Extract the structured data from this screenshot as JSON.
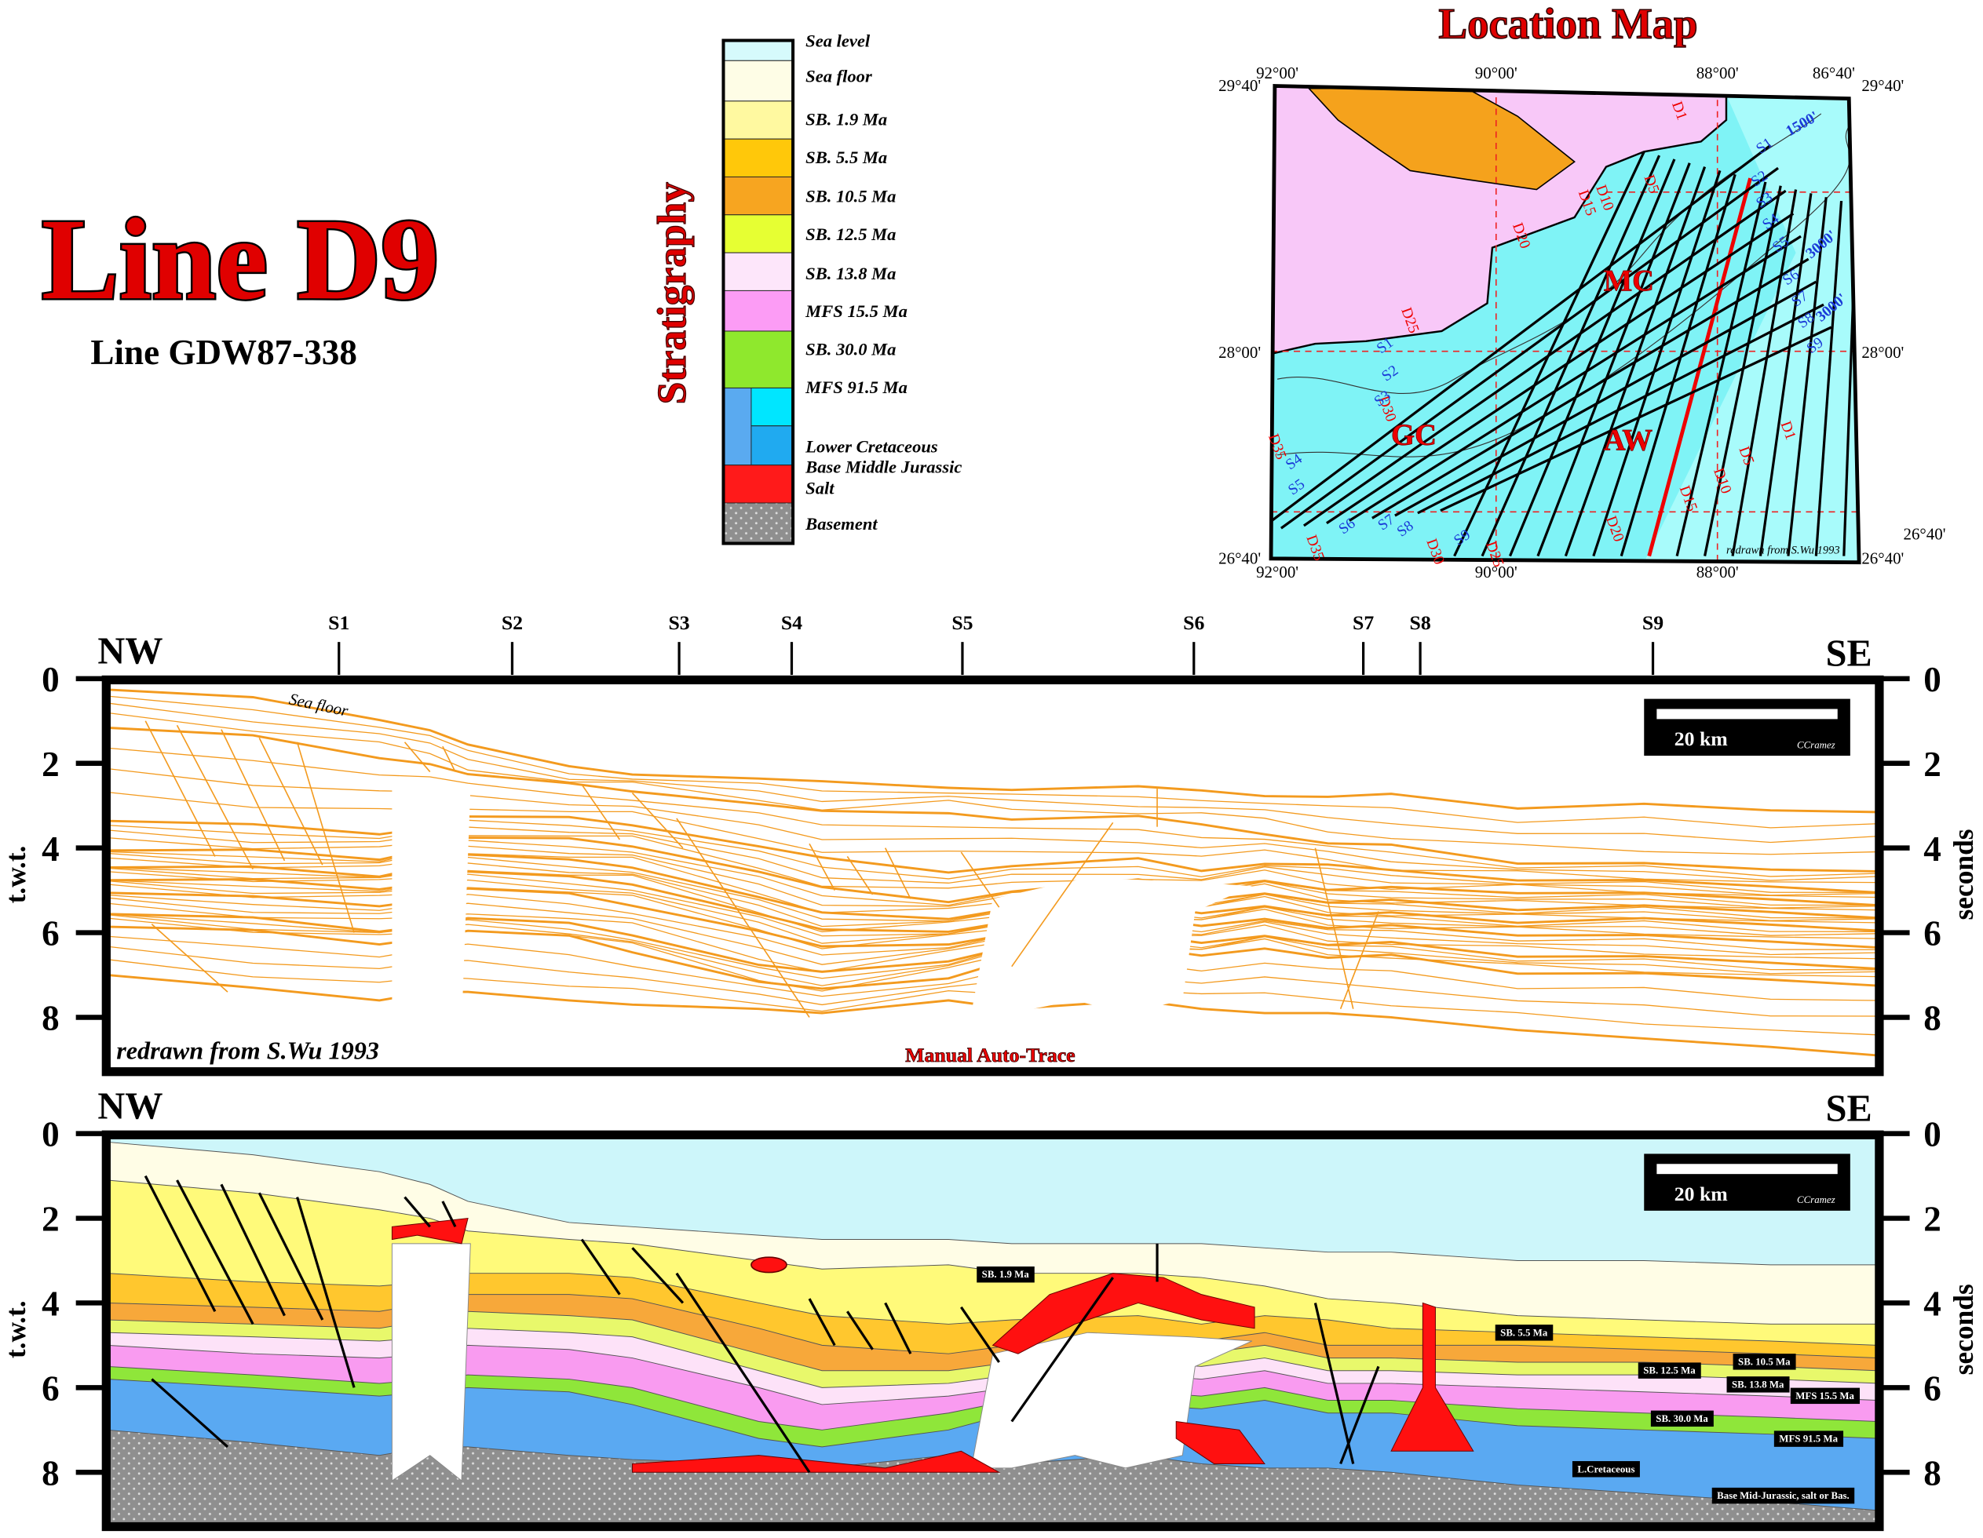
{
  "header": {
    "title": "Line D9",
    "subtitle": "Line GDW87-338"
  },
  "legend": {
    "title": "Stratigraphy",
    "items": [
      "Sea level",
      "Sea floor",
      "SB. 1.9 Ma",
      "SB. 5.5 Ma",
      "SB. 10.5 Ma",
      "SB. 12.5 Ma",
      "SB. 13.8 Ma",
      "MFS 15.5 Ma",
      "SB. 30.0 Ma",
      "MFS 91.5 Ma",
      "Lower Cretaceous",
      "Base Middle Jurassic",
      "Salt",
      "Basement"
    ]
  },
  "map": {
    "title": "Location Map",
    "lon_labels": [
      "92°00'",
      "90°00'",
      "88°00'",
      "86°40'"
    ],
    "lat_labels": [
      "29°40'",
      "28°00'",
      "26°40'"
    ],
    "area_labels": [
      "MC",
      "GC",
      "AW"
    ],
    "contour_labels": [
      "1500'",
      "3000'"
    ],
    "d_lines": [
      "D1",
      "D5",
      "D10",
      "D15",
      "D20",
      "D25",
      "D30",
      "D35"
    ],
    "s_lines": [
      "S1",
      "S2",
      "S3",
      "S4",
      "S5",
      "S6",
      "S7",
      "S8",
      "S9"
    ],
    "credit": "redrawn from S.Wu 1993"
  },
  "section_top": {
    "stations": [
      "S1",
      "S2",
      "S3",
      "S4",
      "S5",
      "S6",
      "S7",
      "S8",
      "S9"
    ],
    "left": "NW",
    "right": "SE",
    "ticks": [
      0,
      2,
      4,
      6,
      8
    ],
    "y_label": "t.w.t.",
    "y2_label": "seconds",
    "seafloor_label": "Sea floor",
    "scale": "20 km",
    "author": "CCramez",
    "credit": "redrawn from S.Wu 1993",
    "method": "Manual Auto-Trace"
  },
  "section_bottom": {
    "left": "NW",
    "right": "SE",
    "ticks": [
      0,
      2,
      4,
      6,
      8
    ],
    "y_label": "t.w.t.",
    "y2_label": "seconds",
    "scale": "20 km",
    "author": "CCramez",
    "horizon_labels": [
      "SB. 1.9 Ma",
      "SB. 5.5 Ma",
      "SB. 10.5 Ma",
      "SB. 12.5 Ma",
      "SB. 13.8 Ma",
      "MFS 15.5 Ma",
      "SB. 30.0 Ma",
      "MFS 91.5 Ma",
      "L.Cretaceous",
      "Base Mid-Jurassic, salt or Bas."
    ]
  }
}
